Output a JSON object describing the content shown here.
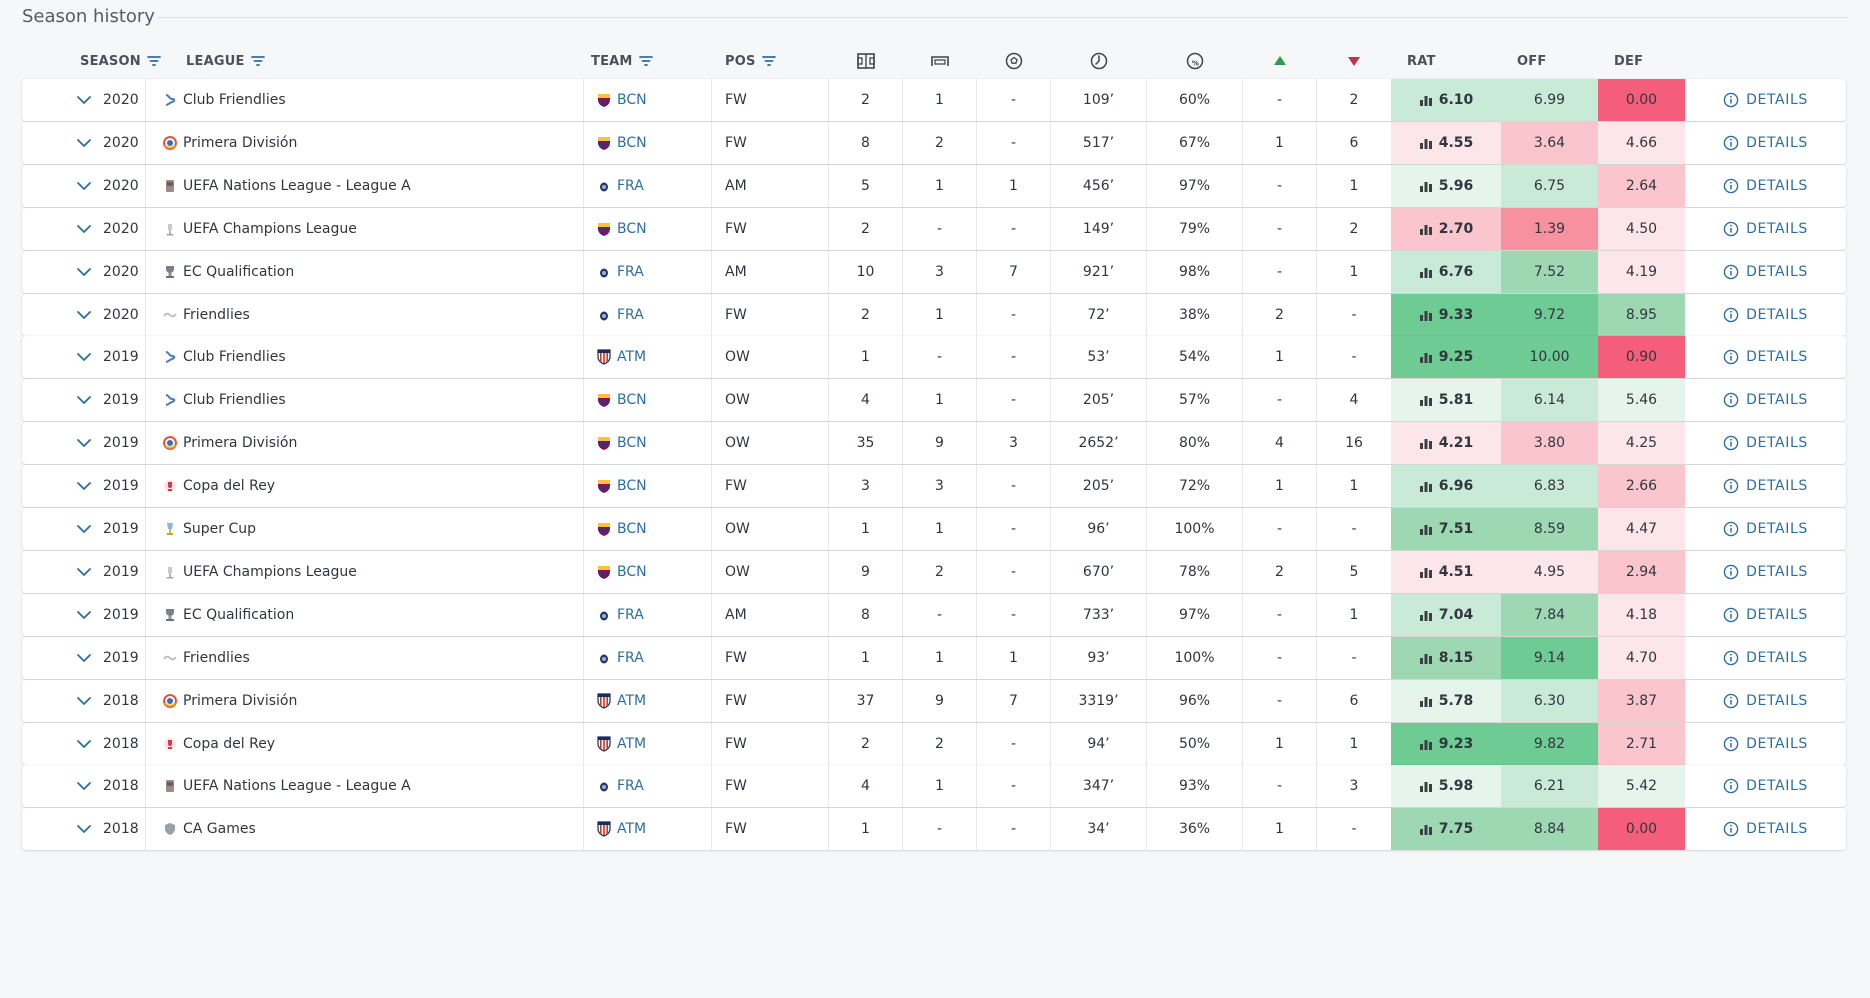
{
  "section": {
    "title": "Season history"
  },
  "header": {
    "season": "SEASON",
    "league": "LEAGUE",
    "team": "TEAM",
    "pos": "POS",
    "appearances_icon": "pitch-icon",
    "goals_icon": "goal-icon",
    "assists_icon": "ball-icon",
    "minutes_icon": "clock-icon",
    "pass_pct_icon": "pass-accuracy-icon",
    "up_icon": "triangle-up-icon",
    "down_icon": "triangle-down-icon",
    "rat": "RAT",
    "off": "OFF",
    "def": "DEF"
  },
  "details_label": "DETAILS",
  "colors": {
    "green_strong": "#6ecb94",
    "green_mid": "#9ed8b3",
    "green_light": "#c9ead6",
    "green_faint": "#e6f5ec",
    "red_strong": "#f45d7b",
    "red_mid": "#f8919f",
    "red_light": "#fbc5ce",
    "red_faint": "#fde6ea",
    "link": "#2d6ea3"
  },
  "rows": [
    {
      "season": "2020",
      "league": "Club Friendlies",
      "league_icon": "club-friendlies",
      "team": "BCN",
      "team_badge": "barcelona",
      "pos": "FW",
      "apps": "2",
      "goals": "1",
      "assists": "-",
      "minutes": "109’",
      "pass": "60%",
      "up": "-",
      "down": "2",
      "rat": "6.10",
      "off": "6.99",
      "def": "0.00"
    },
    {
      "season": "2020",
      "league": "Primera División",
      "league_icon": "laliga",
      "team": "BCN",
      "team_badge": "barcelona",
      "pos": "FW",
      "apps": "8",
      "goals": "2",
      "assists": "-",
      "minutes": "517’",
      "pass": "67%",
      "up": "1",
      "down": "6",
      "rat": "4.55",
      "off": "3.64",
      "def": "4.66"
    },
    {
      "season": "2020",
      "league": "UEFA Nations League - League A",
      "league_icon": "nations-league",
      "team": "FRA",
      "team_badge": "france",
      "pos": "AM",
      "apps": "5",
      "goals": "1",
      "assists": "1",
      "minutes": "456’",
      "pass": "97%",
      "up": "-",
      "down": "1",
      "rat": "5.96",
      "off": "6.75",
      "def": "2.64"
    },
    {
      "season": "2020",
      "league": "UEFA Champions League",
      "league_icon": "champions-league",
      "team": "BCN",
      "team_badge": "barcelona",
      "pos": "FW",
      "apps": "2",
      "goals": "-",
      "assists": "-",
      "minutes": "149’",
      "pass": "79%",
      "up": "-",
      "down": "2",
      "rat": "2.70",
      "off": "1.39",
      "def": "4.50"
    },
    {
      "season": "2020",
      "league": "EC Qualification",
      "league_icon": "euro-qual",
      "team": "FRA",
      "team_badge": "france",
      "pos": "AM",
      "apps": "10",
      "goals": "3",
      "assists": "7",
      "minutes": "921’",
      "pass": "98%",
      "up": "-",
      "down": "1",
      "rat": "6.76",
      "off": "7.52",
      "def": "4.19"
    },
    {
      "season": "2020",
      "league": "Friendlies",
      "league_icon": "friendlies",
      "team": "FRA",
      "team_badge": "france",
      "pos": "FW",
      "apps": "2",
      "goals": "1",
      "assists": "-",
      "minutes": "72’",
      "pass": "38%",
      "up": "2",
      "down": "-",
      "rat": "9.33",
      "off": "9.72",
      "def": "8.95"
    },
    {
      "season": "2019",
      "league": "Club Friendlies",
      "league_icon": "club-friendlies",
      "team": "ATM",
      "team_badge": "atletico",
      "pos": "OW",
      "apps": "1",
      "goals": "-",
      "assists": "-",
      "minutes": "53’",
      "pass": "54%",
      "up": "1",
      "down": "-",
      "rat": "9.25",
      "off": "10.00",
      "def": "0.90"
    },
    {
      "season": "2019",
      "league": "Club Friendlies",
      "league_icon": "club-friendlies",
      "team": "BCN",
      "team_badge": "barcelona",
      "pos": "OW",
      "apps": "4",
      "goals": "1",
      "assists": "-",
      "minutes": "205’",
      "pass": "57%",
      "up": "-",
      "down": "4",
      "rat": "5.81",
      "off": "6.14",
      "def": "5.46"
    },
    {
      "season": "2019",
      "league": "Primera División",
      "league_icon": "laliga",
      "team": "BCN",
      "team_badge": "barcelona",
      "pos": "OW",
      "apps": "35",
      "goals": "9",
      "assists": "3",
      "minutes": "2652’",
      "pass": "80%",
      "up": "4",
      "down": "16",
      "rat": "4.21",
      "off": "3.80",
      "def": "4.25"
    },
    {
      "season": "2019",
      "league": "Copa del Rey",
      "league_icon": "copa-del-rey",
      "team": "BCN",
      "team_badge": "barcelona",
      "pos": "FW",
      "apps": "3",
      "goals": "3",
      "assists": "-",
      "minutes": "205’",
      "pass": "72%",
      "up": "1",
      "down": "1",
      "rat": "6.96",
      "off": "6.83",
      "def": "2.66"
    },
    {
      "season": "2019",
      "league": "Super Cup",
      "league_icon": "super-cup",
      "team": "BCN",
      "team_badge": "barcelona",
      "pos": "OW",
      "apps": "1",
      "goals": "1",
      "assists": "-",
      "minutes": "96’",
      "pass": "100%",
      "up": "-",
      "down": "-",
      "rat": "7.51",
      "off": "8.59",
      "def": "4.47"
    },
    {
      "season": "2019",
      "league": "UEFA Champions League",
      "league_icon": "champions-league",
      "team": "BCN",
      "team_badge": "barcelona",
      "pos": "OW",
      "apps": "9",
      "goals": "2",
      "assists": "-",
      "minutes": "670’",
      "pass": "78%",
      "up": "2",
      "down": "5",
      "rat": "4.51",
      "off": "4.95",
      "def": "2.94"
    },
    {
      "season": "2019",
      "league": "EC Qualification",
      "league_icon": "euro-qual",
      "team": "FRA",
      "team_badge": "france",
      "pos": "AM",
      "apps": "8",
      "goals": "-",
      "assists": "-",
      "minutes": "733’",
      "pass": "97%",
      "up": "-",
      "down": "1",
      "rat": "7.04",
      "off": "7.84",
      "def": "4.18"
    },
    {
      "season": "2019",
      "league": "Friendlies",
      "league_icon": "friendlies",
      "team": "FRA",
      "team_badge": "france",
      "pos": "FW",
      "apps": "1",
      "goals": "1",
      "assists": "1",
      "minutes": "93’",
      "pass": "100%",
      "up": "-",
      "down": "-",
      "rat": "8.15",
      "off": "9.14",
      "def": "4.70"
    },
    {
      "season": "2018",
      "league": "Primera División",
      "league_icon": "laliga",
      "team": "ATM",
      "team_badge": "atletico",
      "pos": "FW",
      "apps": "37",
      "goals": "9",
      "assists": "7",
      "minutes": "3319’",
      "pass": "96%",
      "up": "-",
      "down": "6",
      "rat": "5.78",
      "off": "6.30",
      "def": "3.87"
    },
    {
      "season": "2018",
      "league": "Copa del Rey",
      "league_icon": "copa-del-rey",
      "team": "ATM",
      "team_badge": "atletico",
      "pos": "FW",
      "apps": "2",
      "goals": "2",
      "assists": "-",
      "minutes": "94’",
      "pass": "50%",
      "up": "1",
      "down": "1",
      "rat": "9.23",
      "off": "9.82",
      "def": "2.71"
    },
    {
      "season": "2018",
      "league": "UEFA Nations League - League A",
      "league_icon": "nations-league",
      "team": "FRA",
      "team_badge": "france",
      "pos": "FW",
      "apps": "4",
      "goals": "1",
      "assists": "-",
      "minutes": "347’",
      "pass": "93%",
      "up": "-",
      "down": "3",
      "rat": "5.98",
      "off": "6.21",
      "def": "5.42"
    },
    {
      "season": "2018",
      "league": "CA Games",
      "league_icon": "ca-games",
      "team": "ATM",
      "team_badge": "atletico",
      "pos": "FW",
      "apps": "1",
      "goals": "-",
      "assists": "-",
      "minutes": "34’",
      "pass": "36%",
      "up": "1",
      "down": "-",
      "rat": "7.75",
      "off": "8.84",
      "def": "0.00"
    }
  ]
}
